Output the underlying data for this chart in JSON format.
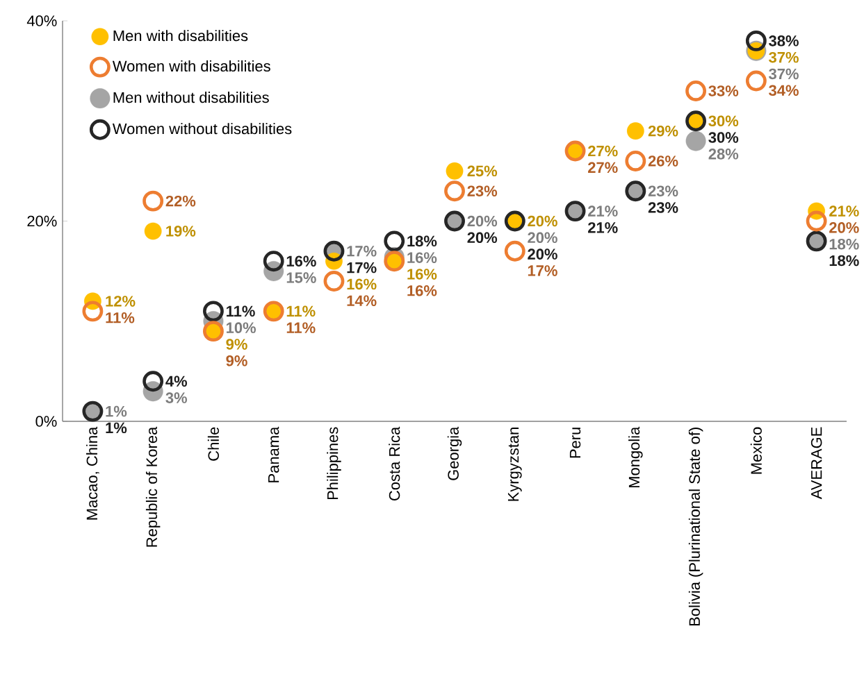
{
  "chart_data": {
    "type": "scatter",
    "categories": [
      "Macao, China",
      "Republic of Korea",
      "Chile",
      "Panama",
      "Philippines",
      "Costa Rica",
      "Georgia",
      "Kyrgyzstan",
      "Peru",
      "Mongolia",
      "Bolivia (Plurinational State of)",
      "Mexico",
      "AVERAGE"
    ],
    "series": [
      {
        "name": "Men with disabilities",
        "color": "#ffc000",
        "values": [
          12,
          19,
          9,
          11,
          16,
          16,
          25,
          20,
          27,
          29,
          30,
          37,
          21
        ],
        "value_labels": [
          "12%",
          "19%",
          "9%",
          "11%",
          "16%",
          "16%",
          "25%",
          "20%",
          "27%",
          "29%",
          "30%",
          "37%",
          "21%"
        ]
      },
      {
        "name": "Women with disabilities",
        "color": "#ed7d31",
        "values": [
          11,
          22,
          9,
          11,
          14,
          16,
          23,
          17,
          27,
          26,
          33,
          34,
          20
        ],
        "value_labels": [
          "11%",
          "22%",
          "9%",
          "11%",
          "14%",
          "16%",
          "23%",
          "17%",
          "27%",
          "26%",
          "33%",
          "34%",
          "20%"
        ]
      },
      {
        "name": "Men without disabilities",
        "color": "#a5a5a5",
        "values": [
          1,
          3,
          10,
          15,
          17,
          16.4,
          20,
          20,
          21,
          23,
          28,
          37,
          18
        ],
        "value_labels": [
          "1%",
          "3%",
          "10%",
          "15%",
          "17%",
          "16%",
          "20%",
          "20%",
          "21%",
          "23%",
          "28%",
          "37%",
          "18%"
        ]
      },
      {
        "name": "Women without disabilities",
        "color": "#262626",
        "values": [
          1,
          4,
          11,
          16,
          17,
          18,
          20,
          20,
          21,
          23,
          30,
          38,
          18
        ],
        "value_labels": [
          "1%",
          "4%",
          "11%",
          "16%",
          "17%",
          "18%",
          "20%",
          "20%",
          "21%",
          "23%",
          "30%",
          "38%",
          "18%"
        ]
      }
    ],
    "ylim": [
      0,
      40
    ],
    "yticks": [
      {
        "value": 0,
        "label": "0%"
      },
      {
        "value": 20,
        "label": "20%"
      },
      {
        "value": 40,
        "label": "40%"
      }
    ],
    "legend": "top left",
    "marker": "circle",
    "grid": false
  }
}
